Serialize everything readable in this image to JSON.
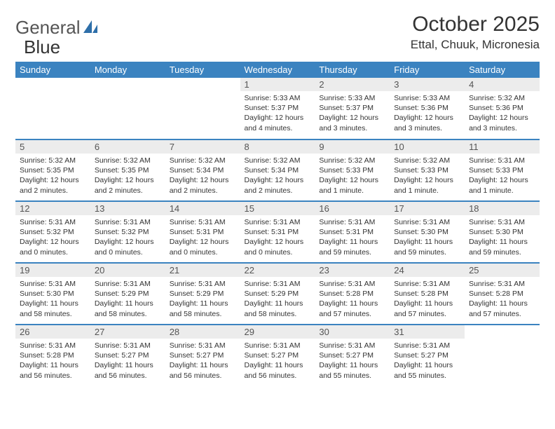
{
  "colors": {
    "header_bg": "#3b83c0",
    "header_text": "#ffffff",
    "daynum_bg": "#ececec",
    "row_divider": "#3b83c0",
    "text": "#333333",
    "logo_gray": "#555555",
    "logo_blue": "#2e6fa9"
  },
  "logo": {
    "part1": "General",
    "part2": "Blue"
  },
  "title": "October 2025",
  "location": "Ettal, Chuuk, Micronesia",
  "day_headers": [
    "Sunday",
    "Monday",
    "Tuesday",
    "Wednesday",
    "Thursday",
    "Friday",
    "Saturday"
  ],
  "labels": {
    "sunrise": "Sunrise:",
    "sunset": "Sunset:",
    "daylight": "Daylight:"
  },
  "weeks": [
    [
      null,
      null,
      null,
      {
        "d": "1",
        "sr": "5:33 AM",
        "ss": "5:37 PM",
        "dl": "12 hours and 4 minutes."
      },
      {
        "d": "2",
        "sr": "5:33 AM",
        "ss": "5:37 PM",
        "dl": "12 hours and 3 minutes."
      },
      {
        "d": "3",
        "sr": "5:33 AM",
        "ss": "5:36 PM",
        "dl": "12 hours and 3 minutes."
      },
      {
        "d": "4",
        "sr": "5:32 AM",
        "ss": "5:36 PM",
        "dl": "12 hours and 3 minutes."
      }
    ],
    [
      {
        "d": "5",
        "sr": "5:32 AM",
        "ss": "5:35 PM",
        "dl": "12 hours and 2 minutes."
      },
      {
        "d": "6",
        "sr": "5:32 AM",
        "ss": "5:35 PM",
        "dl": "12 hours and 2 minutes."
      },
      {
        "d": "7",
        "sr": "5:32 AM",
        "ss": "5:34 PM",
        "dl": "12 hours and 2 minutes."
      },
      {
        "d": "8",
        "sr": "5:32 AM",
        "ss": "5:34 PM",
        "dl": "12 hours and 2 minutes."
      },
      {
        "d": "9",
        "sr": "5:32 AM",
        "ss": "5:33 PM",
        "dl": "12 hours and 1 minute."
      },
      {
        "d": "10",
        "sr": "5:32 AM",
        "ss": "5:33 PM",
        "dl": "12 hours and 1 minute."
      },
      {
        "d": "11",
        "sr": "5:31 AM",
        "ss": "5:33 PM",
        "dl": "12 hours and 1 minute."
      }
    ],
    [
      {
        "d": "12",
        "sr": "5:31 AM",
        "ss": "5:32 PM",
        "dl": "12 hours and 0 minutes."
      },
      {
        "d": "13",
        "sr": "5:31 AM",
        "ss": "5:32 PM",
        "dl": "12 hours and 0 minutes."
      },
      {
        "d": "14",
        "sr": "5:31 AM",
        "ss": "5:31 PM",
        "dl": "12 hours and 0 minutes."
      },
      {
        "d": "15",
        "sr": "5:31 AM",
        "ss": "5:31 PM",
        "dl": "12 hours and 0 minutes."
      },
      {
        "d": "16",
        "sr": "5:31 AM",
        "ss": "5:31 PM",
        "dl": "11 hours and 59 minutes."
      },
      {
        "d": "17",
        "sr": "5:31 AM",
        "ss": "5:30 PM",
        "dl": "11 hours and 59 minutes."
      },
      {
        "d": "18",
        "sr": "5:31 AM",
        "ss": "5:30 PM",
        "dl": "11 hours and 59 minutes."
      }
    ],
    [
      {
        "d": "19",
        "sr": "5:31 AM",
        "ss": "5:30 PM",
        "dl": "11 hours and 58 minutes."
      },
      {
        "d": "20",
        "sr": "5:31 AM",
        "ss": "5:29 PM",
        "dl": "11 hours and 58 minutes."
      },
      {
        "d": "21",
        "sr": "5:31 AM",
        "ss": "5:29 PM",
        "dl": "11 hours and 58 minutes."
      },
      {
        "d": "22",
        "sr": "5:31 AM",
        "ss": "5:29 PM",
        "dl": "11 hours and 58 minutes."
      },
      {
        "d": "23",
        "sr": "5:31 AM",
        "ss": "5:28 PM",
        "dl": "11 hours and 57 minutes."
      },
      {
        "d": "24",
        "sr": "5:31 AM",
        "ss": "5:28 PM",
        "dl": "11 hours and 57 minutes."
      },
      {
        "d": "25",
        "sr": "5:31 AM",
        "ss": "5:28 PM",
        "dl": "11 hours and 57 minutes."
      }
    ],
    [
      {
        "d": "26",
        "sr": "5:31 AM",
        "ss": "5:28 PM",
        "dl": "11 hours and 56 minutes."
      },
      {
        "d": "27",
        "sr": "5:31 AM",
        "ss": "5:27 PM",
        "dl": "11 hours and 56 minutes."
      },
      {
        "d": "28",
        "sr": "5:31 AM",
        "ss": "5:27 PM",
        "dl": "11 hours and 56 minutes."
      },
      {
        "d": "29",
        "sr": "5:31 AM",
        "ss": "5:27 PM",
        "dl": "11 hours and 56 minutes."
      },
      {
        "d": "30",
        "sr": "5:31 AM",
        "ss": "5:27 PM",
        "dl": "11 hours and 55 minutes."
      },
      {
        "d": "31",
        "sr": "5:31 AM",
        "ss": "5:27 PM",
        "dl": "11 hours and 55 minutes."
      },
      null
    ]
  ]
}
